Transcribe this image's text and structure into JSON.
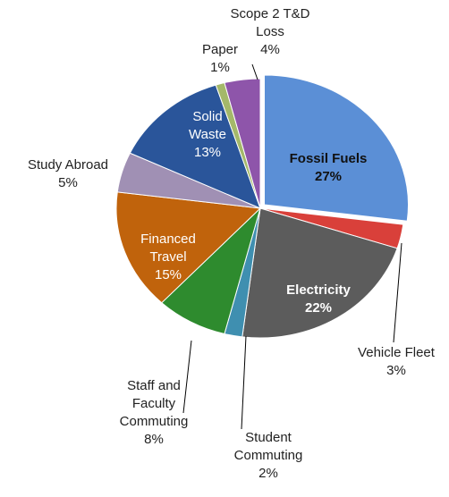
{
  "chart_data": {
    "type": "pie",
    "categories": [
      "Fossil Fuels",
      "Vehicle Fleet",
      "Electricity",
      "Student Commuting",
      "Staff and Faculty Commuting",
      "Financed Travel",
      "Study Abroad",
      "Solid Waste",
      "Paper",
      "Scope 2 T&D Loss"
    ],
    "values": [
      27,
      3,
      22,
      2,
      8,
      15,
      5,
      13,
      1,
      4
    ],
    "value_labels": [
      "27%",
      "3%",
      "22%",
      "2%",
      "8%",
      "15%",
      "5%",
      "13%",
      "1%",
      "4%"
    ],
    "colors": [
      "#5b8fd6",
      "#d9403a",
      "#5c5c5c",
      "#3f8fb0",
      "#2e8b2e",
      "#c0630c",
      "#a090b4",
      "#2a559a",
      "#a4b86a",
      "#8e55aa"
    ]
  }
}
